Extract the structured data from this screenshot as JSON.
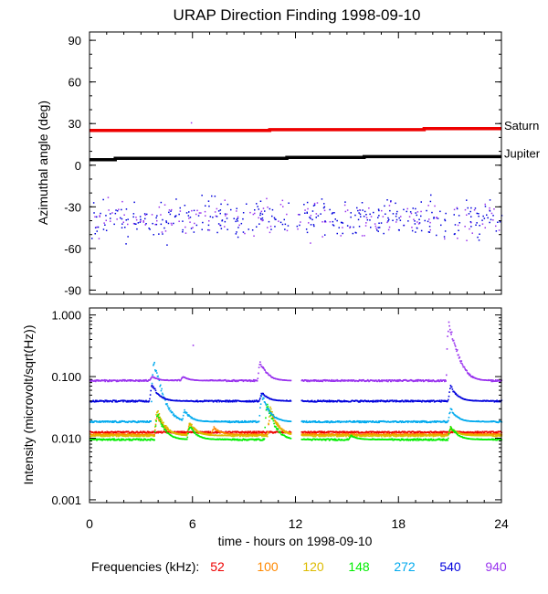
{
  "chart_data": {
    "type": "scatter",
    "title": "URAP Direction Finding  1998-09-10",
    "xlabel": "time - hours on 1998-09-10",
    "x_ticks": [
      "0",
      "6",
      "12",
      "18",
      "24"
    ],
    "xlim": [
      0,
      24
    ],
    "top_panel": {
      "ylabel": "Azimuthal angle (deg)",
      "ylim": [
        -93,
        96
      ],
      "y_ticks": [
        {
          "v": 90,
          "label": "90"
        },
        {
          "v": 60,
          "label": "60"
        },
        {
          "v": 30,
          "label": "30"
        },
        {
          "v": 0,
          "label": "0"
        },
        {
          "v": -30,
          "label": "-30"
        },
        {
          "v": -60,
          "label": "-60"
        },
        {
          "v": -90,
          "label": "-90"
        }
      ],
      "lines": [
        {
          "name": "Saturn",
          "color": "#ee0000",
          "x": [
            0,
            5.5,
            5.5,
            10.5,
            10.5,
            19.5,
            19.5,
            24
          ],
          "y": [
            25,
            25,
            25,
            25,
            25.6,
            25.6,
            26.3,
            26.3
          ]
        },
        {
          "name": "Jupiter",
          "color": "#000000",
          "x": [
            0,
            1.5,
            1.5,
            11.5,
            11.5,
            16,
            16,
            24
          ],
          "y": [
            4,
            4,
            5,
            5,
            5.6,
            5.6,
            6.2,
            6.2
          ]
        }
      ],
      "scatter_center": -38,
      "scatter_spread": 7
    },
    "bottom_panel": {
      "ylabel": "Intensity (microvolt/sqrt(Hz))",
      "yscale": "log",
      "ylim": [
        0.0009,
        1.3
      ],
      "y_ticks": [
        {
          "v": 1.0,
          "label": "1.000"
        },
        {
          "v": 0.1,
          "label": "0.100"
        },
        {
          "v": 0.01,
          "label": "0.010"
        },
        {
          "v": 0.001,
          "label": "0.001"
        }
      ],
      "gap": [
        11.7,
        12.3
      ],
      "series": [
        {
          "name": "52",
          "color": "#ee0000",
          "base": 0.0125,
          "bursts": []
        },
        {
          "name": "100",
          "color": "#ff8800",
          "base": 0.0115,
          "bursts": [
            [
              3.9,
              0.024
            ],
            [
              5.8,
              0.017
            ],
            [
              7.2,
              0.015
            ],
            [
              10.5,
              0.028
            ],
            [
              21.0,
              0.014
            ]
          ]
        },
        {
          "name": "120",
          "color": "#ddbb00",
          "base": 0.011,
          "bursts": [
            [
              3.9,
              0.03
            ],
            [
              5.8,
              0.018
            ],
            [
              10.5,
              0.03
            ],
            [
              21.0,
              0.015
            ]
          ]
        },
        {
          "name": "148",
          "color": "#00ee00",
          "base": 0.0095,
          "bursts": [
            [
              3.9,
              0.025
            ],
            [
              5.8,
              0.016
            ],
            [
              10.3,
              0.035
            ],
            [
              15.2,
              0.011
            ],
            [
              21.0,
              0.016
            ]
          ]
        },
        {
          "name": "272",
          "color": "#00aaee",
          "base": 0.0185,
          "bursts": [
            [
              3.7,
              0.17
            ],
            [
              5.5,
              0.028
            ],
            [
              10.0,
              0.05
            ],
            [
              21.0,
              0.03
            ]
          ]
        },
        {
          "name": "540",
          "color": "#0000dd",
          "base": 0.04,
          "bursts": [
            [
              3.6,
              0.075
            ],
            [
              10.0,
              0.055
            ],
            [
              21.0,
              0.07
            ]
          ]
        },
        {
          "name": "940",
          "color": "#9933ee",
          "base": 0.086,
          "bursts": [
            [
              3.6,
              0.1
            ],
            [
              5.4,
              0.1
            ],
            [
              9.9,
              0.17
            ],
            [
              20.9,
              0.75
            ]
          ]
        }
      ]
    },
    "legend": {
      "label": "Frequencies (kHz):",
      "items": [
        {
          "text": "52",
          "color": "#ee0000"
        },
        {
          "text": "100",
          "color": "#ff8800"
        },
        {
          "text": "120",
          "color": "#ddbb00"
        },
        {
          "text": "148",
          "color": "#00ee00"
        },
        {
          "text": "272",
          "color": "#00aaee"
        },
        {
          "text": "540",
          "color": "#0000dd"
        },
        {
          "text": "940",
          "color": "#9933ee"
        }
      ]
    }
  }
}
